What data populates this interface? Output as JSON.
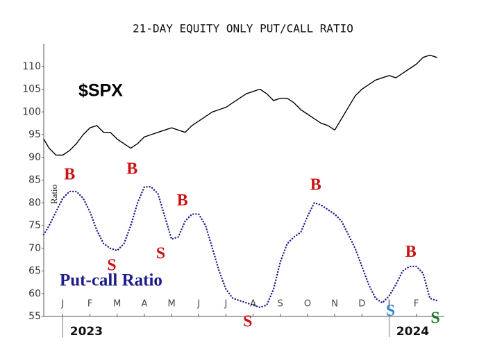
{
  "chart_data": {
    "type": "line",
    "title": "21-DAY EQUITY ONLY PUT/CALL RATIO",
    "ylabel": "Ratio",
    "x": [
      -0.7,
      -0.5,
      -0.25,
      0,
      0.25,
      0.5,
      0.75,
      1,
      1.25,
      1.5,
      1.75,
      2,
      2.25,
      2.5,
      2.75,
      3,
      3.25,
      3.5,
      3.75,
      4,
      4.25,
      4.5,
      4.75,
      5,
      5.25,
      5.5,
      5.75,
      6,
      6.25,
      6.5,
      6.75,
      7,
      7.25,
      7.5,
      7.75,
      8,
      8.25,
      8.5,
      8.75,
      9,
      9.25,
      9.5,
      9.75,
      10,
      10.25,
      10.5,
      10.75,
      11,
      11.25,
      11.5,
      11.75,
      12,
      12.25,
      12.5,
      12.75,
      13,
      13.25,
      13.5,
      13.75
    ],
    "series": [
      {
        "name": "$SPX",
        "color": "#000000",
        "style": "solid",
        "values": [
          94,
          92,
          90.5,
          90.5,
          91.5,
          93,
          95,
          96.5,
          97,
          95.5,
          95.5,
          94,
          93,
          92,
          93,
          94.5,
          95,
          95.5,
          96,
          96.5,
          96,
          95.5,
          97,
          98,
          99,
          100,
          100.5,
          101,
          102,
          103,
          104,
          104.5,
          105,
          104,
          102.5,
          103,
          103,
          102,
          100.5,
          99.5,
          98.5,
          97.5,
          97,
          96,
          98.5,
          101,
          103.5,
          105,
          106,
          107,
          107.5,
          108,
          107.5,
          108.5,
          109.5,
          110.5,
          112,
          112.5,
          112
        ]
      },
      {
        "name": "Put-call Ratio",
        "color": "#1c1c8c",
        "style": "dotted",
        "values": [
          73,
          75,
          78,
          81,
          82.5,
          82.5,
          81,
          78,
          74,
          71,
          70,
          69.5,
          71,
          75,
          80,
          83.5,
          83.5,
          82,
          77,
          72,
          72.5,
          76,
          77.5,
          77.5,
          75,
          70,
          65,
          61,
          59,
          58.5,
          58,
          57.5,
          57,
          57.5,
          61,
          67,
          71,
          72.5,
          73.5,
          77,
          80,
          79.5,
          78.5,
          77.5,
          76,
          73,
          70,
          66,
          62,
          59,
          58,
          59.5,
          62,
          65,
          66,
          66,
          64.5,
          59,
          58.5
        ]
      }
    ],
    "xlim": [
      -0.7,
      13.75
    ],
    "xticks": [
      {
        "value": 0,
        "label": "J"
      },
      {
        "value": 1,
        "label": "F"
      },
      {
        "value": 2,
        "label": "M"
      },
      {
        "value": 3,
        "label": "A"
      },
      {
        "value": 4,
        "label": "M"
      },
      {
        "value": 5,
        "label": "J"
      },
      {
        "value": 6,
        "label": "J"
      },
      {
        "value": 7,
        "label": "A"
      },
      {
        "value": 8,
        "label": "S"
      },
      {
        "value": 9,
        "label": "O"
      },
      {
        "value": 10,
        "label": "N"
      },
      {
        "value": 11,
        "label": "D"
      },
      {
        "value": 12,
        "label": "J"
      },
      {
        "value": 13,
        "label": "F"
      }
    ],
    "year_ticks": [
      {
        "value": 0,
        "label": "2023"
      },
      {
        "value": 12,
        "label": "2024"
      }
    ],
    "ylim": [
      55,
      115
    ],
    "yticks": [
      55,
      60,
      65,
      70,
      75,
      80,
      85,
      90,
      95,
      100,
      105,
      110
    ],
    "annotations": [
      {
        "text": "B",
        "x": 0.25,
        "y": 86,
        "color": "#cc1111"
      },
      {
        "text": "S",
        "x": 1.8,
        "y": 66,
        "color": "#cc1111"
      },
      {
        "text": "B",
        "x": 2.55,
        "y": 87.2,
        "color": "#cc1111"
      },
      {
        "text": "S",
        "x": 3.6,
        "y": 68.6,
        "color": "#cc1111"
      },
      {
        "text": "B",
        "x": 4.4,
        "y": 80.3,
        "color": "#cc1111"
      },
      {
        "text": "S",
        "x": 6.8,
        "y": 53.6,
        "color": "#cc1111"
      },
      {
        "text": "B",
        "x": 9.3,
        "y": 83.7,
        "color": "#cc1111"
      },
      {
        "text": "S",
        "x": 12.05,
        "y": 56,
        "color": "#3a86d0"
      },
      {
        "text": "B",
        "x": 12.8,
        "y": 69,
        "color": "#cc1111"
      },
      {
        "text": "S",
        "x": 13.7,
        "y": 54.4,
        "color": "#1a7a2a"
      }
    ]
  }
}
